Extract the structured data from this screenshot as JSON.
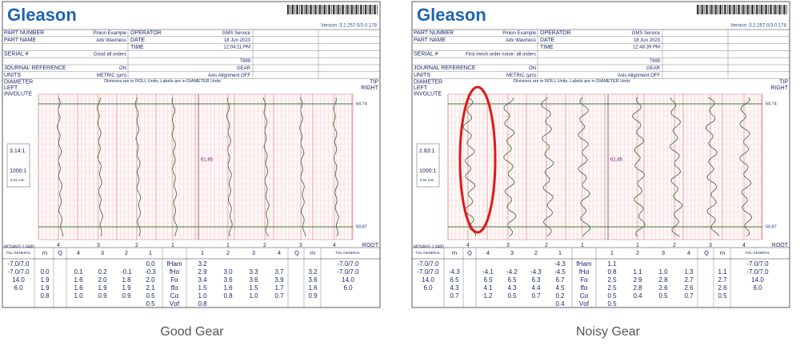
{
  "panels": [
    {
      "logo": "Gleason",
      "version": "Version :3.2.257.0/3.0.178",
      "header": [
        [
          "PART NUMBER",
          "Pinion Example",
          "OPERATOR",
          "GMS Service"
        ],
        [
          "PART NAME",
          "Adv Waviness",
          "DATE",
          "18 Jun 2023"
        ],
        [
          null,
          null,
          "TIME",
          "12:04:11 PM"
        ],
        [
          "SERIAL #",
          "Good all orders",
          null,
          null
        ],
        [
          null,
          null,
          null,
          "7999"
        ],
        [
          "JOURNAL REFERENCE",
          "ON",
          null,
          "GEAR"
        ],
        [
          "UNITS",
          "METRIC (µm)",
          null,
          "Axis Alignment OFF"
        ]
      ],
      "chart": {
        "left_labels": [
          "DIAMETER",
          "LEFT",
          "INVOLUTE"
        ],
        "note": "Divisions are in ROLL Units, Labels are in DIAMETER Units",
        "right_labels": [
          "TIP",
          "RIGHT"
        ],
        "top_diameter": "64.74",
        "mid_diameter": "61.85",
        "bottom_diameter": "59.87",
        "scale": "3.14:1",
        "magnification": "1000:1",
        "division": "0.01 mm",
        "filter": "MOVAVG 1.0480",
        "tooth_labels": [
          "4",
          "3",
          "2",
          "1",
          "1",
          "2",
          "3",
          "4"
        ],
        "root": "ROOT"
      },
      "table": {
        "header": [
          "TOL GENERAL",
          "m",
          "Q",
          "4",
          "3",
          "2",
          "1",
          null,
          "1",
          "2",
          "3",
          "4",
          "Q",
          "m",
          "TOL GENERAL"
        ],
        "rows": [
          [
            "-7.0/7.0",
            null,
            null,
            null,
            null,
            null,
            "0.0",
            "fHam",
            "3.2",
            null,
            null,
            null,
            null,
            null,
            "-7.0/7.0"
          ],
          [
            "-7.0/7.0",
            "0.0",
            null,
            "0.1",
            "0.2",
            "-0.1",
            "-0.3",
            "fHα",
            "2.9",
            "3.0",
            "3.3",
            "3.7",
            null,
            "3.2",
            "-7.0/7.0"
          ],
          [
            "14.0",
            "1.9",
            null,
            "1.6",
            "2.0",
            "1.8",
            "2.0",
            "Fα",
            "3.4",
            "3.6",
            "3.6",
            "3.9",
            null,
            "3.6",
            "14.0"
          ],
          [
            "6.0",
            "1.9",
            null,
            "1.6",
            "1.9",
            "1.9",
            "2.1",
            "ffα",
            "1.5",
            "1.6",
            "1.5",
            "1.7",
            null,
            "1.6",
            "6.0"
          ],
          [
            null,
            "0.8",
            null,
            "1.0",
            "0.9",
            "0.9",
            "0.5",
            "Cα",
            "1.0",
            "0.8",
            "1.0",
            "0.7",
            null,
            "0.9",
            null
          ],
          [
            null,
            null,
            null,
            null,
            null,
            null,
            "0.5",
            "Vαf",
            "0.8",
            null,
            null,
            null,
            null,
            null,
            null
          ]
        ]
      }
    },
    {
      "logo": "Gleason",
      "version": "Version :3.2.257.0/3.0.178",
      "header": [
        [
          "PART NUMBER",
          "Pinion Example",
          "OPERATOR",
          "GMS Service"
        ],
        [
          "PART NAME",
          "Adv Waviness",
          "DATE",
          "18 Jun 2023"
        ],
        [
          null,
          null,
          "TIME",
          "12:48:39 PM"
        ],
        [
          "SERIAL #",
          "First mesh order noise- all orders",
          null,
          null
        ],
        [
          null,
          null,
          null,
          "7999"
        ],
        [
          "JOURNAL REFERENCE",
          "ON",
          null,
          "GEAR"
        ],
        [
          "UNITS",
          "METRIC (µm)",
          null,
          "Axis Alignment OFF"
        ]
      ],
      "chart": {
        "left_labels": [
          "DIAMETER",
          "LEFT",
          "INVOLUTE"
        ],
        "note": "Divisions are in ROLL Units, Labels are in DIAMETER Units",
        "right_labels": [
          "TIP",
          "RIGHT"
        ],
        "top_diameter": "64.74",
        "mid_diameter": "61.85",
        "bottom_diameter": "59.87",
        "scale": "2.83:1",
        "magnification": "1000:1",
        "division": "0.01 mm",
        "filter": "MOVAVG 1.0480",
        "tooth_labels": [
          "4",
          "3",
          "2",
          "1",
          "1",
          "2",
          "3",
          "4"
        ],
        "root": "ROOT"
      },
      "table": {
        "header": [
          "TOL GENERAL",
          "m",
          "Q",
          "4",
          "3",
          "2",
          "1",
          null,
          "1",
          "2",
          "3",
          "4",
          "Q",
          "m",
          "TOL GENERAL"
        ],
        "rows": [
          [
            "-7.0/7.0",
            null,
            null,
            null,
            null,
            null,
            "-4.3",
            "fHam",
            "1.1",
            null,
            null,
            null,
            null,
            null,
            "-7.0/7.0"
          ],
          [
            "-7.0/7.0",
            "-4.3",
            null,
            "-4.1",
            "-4.2",
            "-4.3",
            "-4.5",
            "fHα",
            "0.8",
            "1.1",
            "1.0",
            "1.3",
            null,
            "1.1",
            "-7.0/7.0"
          ],
          [
            "14.0",
            "6.5",
            null,
            "6.5",
            "6.5",
            "6.3",
            "6.7",
            "Fα",
            "2.5",
            "2.9",
            "2.8",
            "2.7",
            null,
            "2.7",
            "14.0"
          ],
          [
            "6.0",
            "4.3",
            null,
            "4.1",
            "4.3",
            "4.4",
            "4.5",
            "ffα",
            "2.5",
            "2.8",
            "2.6",
            "2.6",
            null,
            "2.6",
            "6.0"
          ],
          [
            null,
            "0.7",
            null,
            "1.2",
            "0.5",
            "0.7",
            "0.2",
            "Cα",
            "0.5",
            "0.4",
            "0.5",
            "0.7",
            null,
            "0.5",
            null
          ],
          [
            null,
            null,
            null,
            null,
            null,
            null,
            "0.4",
            "Vαf",
            "0.5",
            null,
            null,
            null,
            null,
            null,
            null
          ]
        ]
      }
    }
  ],
  "captions": [
    "Good Gear",
    "Noisy Gear"
  ]
}
